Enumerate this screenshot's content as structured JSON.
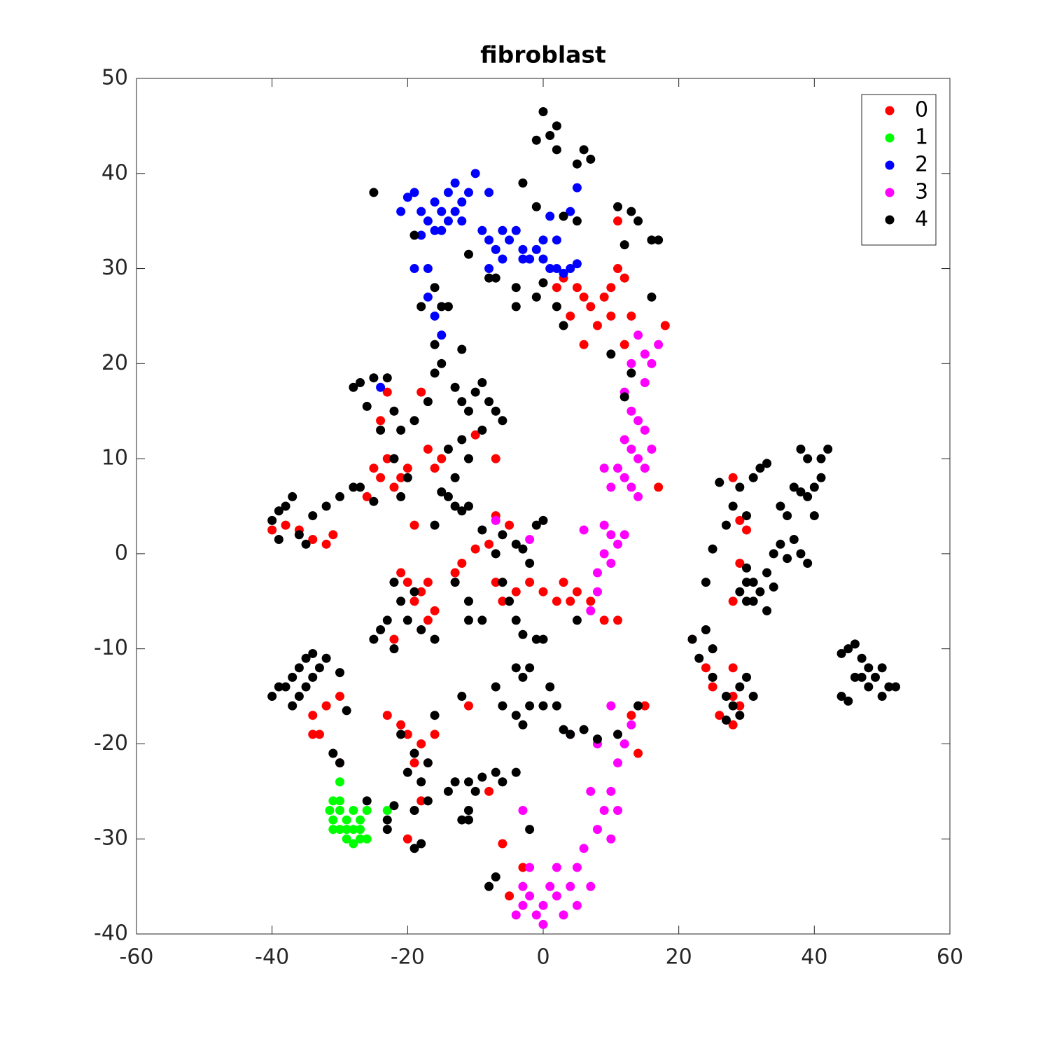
{
  "chart_data": {
    "type": "scatter",
    "title": "fibroblast",
    "xlim": [
      -60,
      60
    ],
    "ylim": [
      -40,
      50
    ],
    "xticks": [
      -60,
      -40,
      -20,
      0,
      20,
      40,
      60
    ],
    "yticks": [
      -40,
      -30,
      -20,
      -10,
      0,
      10,
      20,
      30,
      40,
      50
    ],
    "grid": false,
    "legend": "northeast",
    "series": [
      {
        "name": "0",
        "color": "#ff0000",
        "x": [
          -25,
          -24,
          -23,
          -22,
          -26,
          -21,
          -20,
          -17,
          -16,
          -15,
          -40,
          -38,
          -36,
          -34,
          -32,
          -31,
          -20,
          -18,
          -21,
          -19,
          -17,
          -16,
          -13,
          -12,
          -10,
          -8,
          -7,
          -6,
          -4,
          -2,
          0,
          2,
          4,
          5,
          7,
          9,
          11,
          3,
          -5,
          -7,
          -19,
          -22,
          -17,
          2,
          3,
          5,
          6,
          7,
          9,
          10,
          11,
          12,
          8,
          10,
          12,
          6,
          13,
          18,
          11,
          4,
          -34,
          -33,
          -34,
          -32,
          -30,
          -30,
          -23,
          -21,
          -20,
          -18,
          -16,
          -19,
          -18,
          -20,
          -11,
          -8,
          -6,
          -5,
          -3,
          22,
          24,
          25,
          26,
          28,
          28,
          29,
          28,
          29,
          28,
          30,
          29,
          28,
          14,
          13,
          17,
          15,
          -10,
          -7,
          -24,
          -23,
          -18
        ],
        "values": [
          9,
          8,
          10,
          7,
          6,
          8,
          9,
          11,
          9,
          10,
          2.5,
          3,
          2.5,
          1.5,
          1,
          2,
          -3,
          -4,
          -2,
          -5,
          -3,
          -6,
          -2,
          -1,
          0.5,
          1,
          -3,
          -5,
          -4,
          -3,
          -4,
          -5,
          -5,
          -4,
          -5,
          -7,
          -7,
          -3,
          3,
          4,
          3,
          -9,
          -7,
          28,
          29,
          28,
          27,
          26,
          27,
          28,
          30,
          29,
          24,
          25,
          22,
          22,
          25,
          24,
          35,
          25,
          -17,
          -19,
          -19,
          -16,
          -15,
          -22,
          -17,
          -18,
          -19,
          -20,
          -19,
          -22,
          -26,
          -30,
          -16,
          -25,
          -30.5,
          -36,
          -33,
          -9,
          -12,
          -14,
          -17,
          -15,
          -12,
          -16,
          -18,
          3.5,
          8,
          2.5,
          -1,
          -5,
          -21,
          -17,
          7,
          -16,
          12.5,
          10,
          14,
          17,
          17
        ]
      },
      {
        "name": "1",
        "color": "#00ff00",
        "x": [
          -30,
          -31,
          -31.5,
          -31,
          -30,
          -29,
          -28,
          -27,
          -28,
          -27,
          -29,
          -26,
          -30,
          -28,
          -27,
          -26,
          -31,
          -30,
          -29,
          -23
        ],
        "values": [
          -24,
          -26,
          -27,
          -28,
          -27,
          -28,
          -27,
          -28,
          -29,
          -30,
          -29,
          -30,
          -26,
          -30.5,
          -29,
          -27,
          -29,
          -29,
          -30,
          -27
        ]
      },
      {
        "name": "2",
        "color": "#0000ff",
        "x": [
          -21,
          -20,
          -19,
          -18,
          -17,
          -16,
          -15,
          -14,
          -13,
          -12,
          -11,
          -10,
          -16,
          -15,
          -14,
          -13,
          -12,
          -18,
          -19,
          -17,
          -9,
          -8,
          -7,
          -6,
          -5,
          -4,
          -3,
          -2,
          -1,
          0,
          1,
          2,
          3,
          4,
          5,
          -6,
          -8,
          -3,
          1,
          4,
          5,
          0,
          2,
          -17,
          -16,
          -15,
          -24,
          -8
        ],
        "values": [
          36,
          37.5,
          38,
          36,
          35,
          37,
          36,
          38,
          39,
          37,
          38,
          40,
          34,
          34,
          35,
          36,
          35,
          33.5,
          30,
          30,
          34,
          33,
          32,
          34,
          33,
          34,
          32,
          31,
          32,
          31,
          30,
          30,
          29.5,
          30,
          30.5,
          31,
          30,
          31,
          35.5,
          36,
          38.5,
          33,
          33,
          27,
          25,
          23,
          17.5,
          38
        ]
      },
      {
        "name": "3",
        "color": "#ff00ff",
        "x": [
          14,
          15,
          16,
          17,
          13,
          15,
          12,
          13,
          14,
          15,
          12,
          13,
          14,
          15,
          11,
          12,
          13,
          10,
          16,
          14,
          9,
          9,
          10,
          11,
          12,
          9,
          10,
          8,
          8,
          7,
          6,
          -2,
          -7,
          12,
          13,
          11,
          10,
          11,
          9,
          8,
          10,
          7,
          6,
          5,
          4,
          2,
          1,
          0,
          -1,
          -2,
          -3,
          -4,
          -3,
          0,
          -2,
          2,
          3,
          5,
          7,
          -3,
          4,
          8,
          10
        ],
        "values": [
          23,
          21,
          20,
          22,
          20,
          18,
          17,
          15,
          14,
          13,
          12,
          11,
          10,
          9,
          9,
          8,
          7,
          7,
          11,
          6,
          9,
          3,
          2,
          1,
          2,
          0,
          -1,
          -2,
          -4,
          -6,
          2.5,
          1.5,
          3.5,
          -20,
          -18,
          -22,
          -25,
          -27,
          -27,
          -29,
          -30,
          -25,
          -31,
          -33,
          -35,
          -36,
          -35,
          -37,
          -38,
          -36,
          -37,
          -38,
          -35,
          -39,
          -33,
          -33,
          -38,
          -37,
          -35,
          -27,
          -19,
          -20,
          -16
        ]
      },
      {
        "name": "4",
        "color": "#000000",
        "x": [
          0,
          1,
          2,
          -1,
          2,
          6,
          5,
          7,
          5,
          3,
          -3,
          -1,
          11,
          13,
          14,
          12,
          16,
          17,
          16,
          13,
          10,
          12,
          -25,
          -19,
          -11,
          -8,
          -4,
          -4,
          -7,
          -1,
          0,
          2,
          3,
          -18,
          -16,
          -15,
          -14,
          -16,
          -12,
          -27,
          -25,
          -23,
          -28,
          -26,
          -24,
          -22,
          -21,
          -19,
          -17,
          -16,
          -15,
          -13,
          -12,
          -11,
          -10,
          -9,
          -8,
          -7,
          -6,
          -9,
          -12,
          -14,
          -11,
          -22,
          -20,
          -28,
          -30,
          -32,
          -27,
          -25,
          -21,
          -40,
          -39,
          -38,
          -37,
          -36,
          -35,
          -34,
          -39,
          -14,
          -13,
          -15,
          -11,
          -13,
          -12,
          -9,
          -16,
          -7,
          -6,
          -4,
          -3,
          -2,
          -1,
          0,
          -5,
          -6,
          -4,
          -3,
          -1,
          0,
          -9,
          -11,
          -16,
          -13,
          -11,
          -21,
          -23,
          -24,
          -25,
          -19,
          -20,
          -22,
          5,
          -18,
          26,
          28,
          29,
          31,
          32,
          33,
          30,
          27,
          25,
          30,
          31,
          29,
          30,
          32,
          33,
          34,
          35,
          36,
          37,
          38,
          39,
          36,
          35,
          37,
          38,
          39,
          40,
          40,
          41,
          39,
          41,
          42,
          38,
          24,
          30,
          31,
          33,
          34,
          22,
          24,
          23,
          25,
          25,
          27,
          29,
          30,
          28,
          29,
          27,
          31,
          46,
          45,
          44,
          47,
          48,
          49,
          50,
          51,
          52,
          46,
          48,
          50,
          44,
          45,
          47,
          -40,
          -39,
          -38,
          -37,
          -36,
          -35,
          -34,
          -33,
          -32,
          -36,
          -37,
          -35,
          -34,
          -30,
          -31,
          -30,
          -29,
          -26,
          -23,
          -23,
          -19,
          -19,
          -18,
          -17,
          -18,
          -20,
          -19,
          -17,
          -16,
          -14,
          -13,
          -11,
          -10,
          -9,
          -7,
          -6,
          -12,
          -11,
          -11,
          -4,
          -7,
          -6,
          -4,
          -3,
          -2,
          -3,
          -2,
          -4,
          1,
          2,
          0,
          3,
          4,
          6,
          8,
          11,
          14,
          -2,
          -7,
          -8,
          -12,
          -22,
          -22,
          -21
        ],
        "values": [
          46.5,
          44,
          45,
          43.5,
          42.5,
          42.5,
          41,
          41.5,
          35,
          35.5,
          39,
          36.5,
          36.5,
          36,
          35,
          32.5,
          33,
          33,
          27,
          19,
          21,
          16.5,
          38,
          33.5,
          31.5,
          29,
          28,
          26,
          29,
          27,
          28.5,
          26,
          24,
          26,
          28,
          26,
          26,
          22,
          21.5,
          18,
          18.5,
          18.5,
          17.5,
          15.5,
          13,
          15,
          13,
          14,
          16,
          19,
          20,
          17.5,
          16,
          15,
          17,
          18,
          16,
          15,
          14,
          13,
          12,
          11,
          10,
          10,
          8,
          7,
          6,
          5,
          7,
          5.5,
          6,
          3.5,
          4.5,
          5,
          6,
          2,
          1,
          4,
          1.5,
          6,
          5,
          6.5,
          5,
          8,
          4.5,
          2.5,
          3,
          0,
          2,
          1,
          0.5,
          -1,
          3,
          3.5,
          -5,
          -3,
          -7,
          -8.5,
          -9,
          -9,
          -7,
          -7,
          -9,
          -3,
          -5,
          -5,
          -7,
          -8,
          -9,
          -4,
          -7,
          -10,
          -7,
          -8,
          7.5,
          5,
          7,
          8,
          9,
          9.5,
          4,
          3,
          0.5,
          -1.5,
          -3,
          -4,
          -5,
          -4,
          -2,
          0,
          1,
          -0.5,
          1.5,
          0,
          -1,
          4,
          5,
          7,
          6.5,
          6,
          7,
          4,
          8,
          10,
          10,
          11,
          11,
          -3,
          -3,
          -5,
          -6,
          -3.5,
          -9,
          -8,
          -11,
          -10,
          -13,
          -15,
          -14,
          -13,
          -16,
          -17,
          -17.5,
          -15,
          -9.5,
          -10,
          -10.5,
          -11,
          -12,
          -13,
          -12,
          -14,
          -14,
          -13,
          -14,
          -15,
          -15,
          -15.5,
          -13,
          -15,
          -14,
          -14,
          -13,
          -12,
          -11,
          -10.5,
          -12,
          -11,
          -15,
          -16,
          -14,
          -13,
          -12.5,
          -21,
          -22,
          -16.5,
          -26,
          -29,
          -28,
          -27,
          -31,
          -30.5,
          -26,
          -24,
          -23,
          -21,
          -22,
          -17,
          -25,
          -24,
          -24,
          -25,
          -23.5,
          -23,
          -24,
          -28,
          -28,
          -27,
          -23,
          -14,
          -16,
          -17,
          -18,
          -16,
          -13,
          -12,
          -12,
          -14,
          -16,
          -16,
          -18.5,
          -19,
          -18.5,
          -19.5,
          -19,
          -16,
          -29,
          -34,
          -35,
          -15,
          -3,
          -26.5,
          -19
        ]
      }
    ]
  }
}
